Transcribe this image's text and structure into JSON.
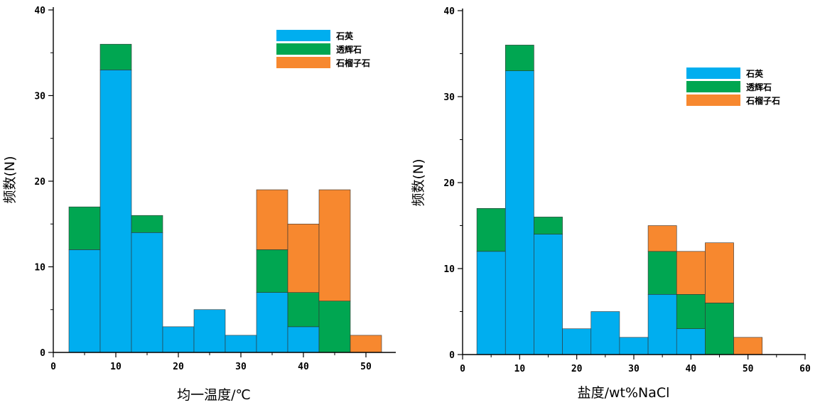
{
  "chart_data": [
    {
      "type": "bar",
      "stacked": true,
      "bin_edges": [
        2.5,
        7.5,
        12.5,
        17.5,
        22.5,
        27.5,
        32.5,
        37.5,
        42.5,
        47.5,
        52.5
      ],
      "xlabel": "均一温度/℃",
      "ylabel": "频数(N)",
      "xlim": [
        0,
        55
      ],
      "ylim": [
        0,
        40
      ],
      "xticks": [
        0,
        10,
        20,
        30,
        40,
        50
      ],
      "yticks": [
        0,
        10,
        20,
        30,
        40
      ],
      "legend_position": "top-right",
      "series": [
        {
          "name": "石英",
          "color": "#00AEEF",
          "values": [
            12,
            33,
            14,
            3,
            5,
            2,
            7,
            3,
            0,
            0
          ]
        },
        {
          "name": "透辉石",
          "color": "#00A651",
          "values": [
            5,
            3,
            2,
            0,
            0,
            0,
            5,
            4,
            6,
            0
          ]
        },
        {
          "name": "石榴子石",
          "color": "#F7882F",
          "values": [
            0,
            0,
            0,
            0,
            0,
            0,
            7,
            8,
            13,
            2
          ]
        }
      ]
    },
    {
      "type": "bar",
      "stacked": true,
      "bin_edges": [
        2.5,
        7.5,
        12.5,
        17.5,
        22.5,
        27.5,
        32.5,
        37.5,
        42.5,
        47.5,
        52.5
      ],
      "xlabel": "盐度/wt%NaCl",
      "ylabel": "频数(N)",
      "xlim": [
        0,
        60
      ],
      "ylim": [
        0,
        40
      ],
      "xticks": [
        0,
        10,
        20,
        30,
        40,
        50,
        60
      ],
      "yticks": [
        0,
        10,
        20,
        30,
        40
      ],
      "legend_position": "top-right",
      "series": [
        {
          "name": "石英",
          "color": "#00AEEF",
          "values": [
            12,
            33,
            14,
            3,
            5,
            2,
            7,
            3,
            0,
            0
          ]
        },
        {
          "name": "透辉石",
          "color": "#00A651",
          "values": [
            5,
            3,
            2,
            0,
            0,
            0,
            5,
            4,
            6,
            0
          ]
        },
        {
          "name": "石榴子石",
          "color": "#F7882F",
          "values": [
            0,
            0,
            0,
            0,
            0,
            0,
            3,
            5,
            7,
            2
          ]
        }
      ]
    }
  ]
}
